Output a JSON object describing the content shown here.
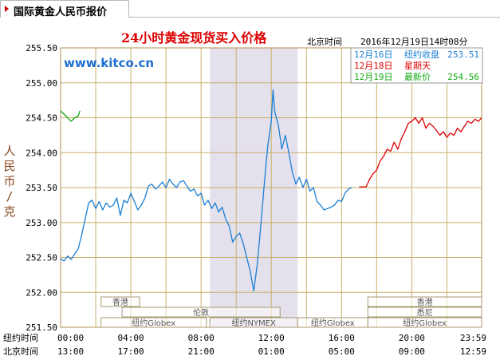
{
  "tab": {
    "title": "国际黄金人民币报价"
  },
  "chart_data": {
    "type": "line",
    "title": "24小时黄金现货买入价格",
    "timestamp_label": "北京时间",
    "timestamp": "2016年12月19日14时08分",
    "watermark": "www.kitco.cn",
    "ylabel": "人民币/克",
    "ylim": [
      251.5,
      255.5
    ],
    "yticks": [
      "251.50",
      "252.00",
      "252.50",
      "253.00",
      "253.50",
      "254.00",
      "254.50",
      "255.00",
      "255.50"
    ],
    "x_rows": [
      {
        "label": "纽约时间",
        "ticks": [
          "00:00",
          "04:00",
          "08:00",
          "12:00",
          "16:00",
          "20:00",
          "23:59"
        ]
      },
      {
        "label": "北京时间",
        "ticks": [
          "13:00",
          "17:00",
          "21:00",
          "01:00",
          "05:00",
          "09:00",
          "12:59"
        ]
      }
    ],
    "ny_hours": [
      0,
      4,
      8,
      12,
      16,
      20,
      23.98
    ],
    "highlight_band": [
      8.5,
      13.5
    ],
    "legend": [
      {
        "date": "12月16日",
        "label": "纽约收盘",
        "value": "253.51",
        "color": "#1a7fd6"
      },
      {
        "date": "12月18日",
        "label": "星期天",
        "value": "",
        "color": "#dd0000"
      },
      {
        "date": "12月19日",
        "label": "最新价",
        "value": "254.56",
        "color": "#11aa11"
      }
    ],
    "sessions": [
      {
        "name": "香港",
        "start": 2.3,
        "end": 4.5,
        "row": 0
      },
      {
        "name": "伦敦",
        "start": 3.5,
        "end": 12.5,
        "row": 1
      },
      {
        "name": "纽约Globex",
        "start": 2.3,
        "end": 8.3,
        "row": 2
      },
      {
        "name": "纽约NYMEX",
        "start": 8.5,
        "end": 13.5,
        "row": 2
      },
      {
        "name": "纽约Globex",
        "start": 13.5,
        "end": 17.5,
        "row": 2
      },
      {
        "name": "香港",
        "start": 17.5,
        "end": 23.98,
        "row": 0
      },
      {
        "name": "悉尼",
        "start": 17.5,
        "end": 23.98,
        "row": 1
      },
      {
        "name": "纽约Globex",
        "start": 17.5,
        "end": 23.98,
        "row": 2
      }
    ],
    "series": [
      {
        "color": "#1a7fd6",
        "points": [
          [
            0.0,
            252.48
          ],
          [
            0.2,
            252.45
          ],
          [
            0.4,
            252.52
          ],
          [
            0.6,
            252.47
          ],
          [
            0.8,
            252.55
          ],
          [
            1.0,
            252.62
          ],
          [
            1.2,
            252.82
          ],
          [
            1.4,
            253.05
          ],
          [
            1.6,
            253.28
          ],
          [
            1.8,
            253.32
          ],
          [
            2.0,
            253.2
          ],
          [
            2.2,
            253.3
          ],
          [
            2.4,
            253.18
          ],
          [
            2.6,
            253.28
          ],
          [
            2.8,
            253.22
          ],
          [
            3.0,
            253.25
          ],
          [
            3.2,
            253.35
          ],
          [
            3.4,
            253.1
          ],
          [
            3.6,
            253.32
          ],
          [
            3.8,
            253.28
          ],
          [
            4.0,
            253.42
          ],
          [
            4.2,
            253.3
          ],
          [
            4.4,
            253.18
          ],
          [
            4.6,
            253.25
          ],
          [
            4.8,
            253.35
          ],
          [
            5.0,
            253.52
          ],
          [
            5.2,
            253.55
          ],
          [
            5.4,
            253.48
          ],
          [
            5.6,
            253.52
          ],
          [
            5.8,
            253.58
          ],
          [
            6.0,
            253.5
          ],
          [
            6.2,
            253.62
          ],
          [
            6.4,
            253.55
          ],
          [
            6.6,
            253.5
          ],
          [
            6.8,
            253.58
          ],
          [
            7.0,
            253.6
          ],
          [
            7.2,
            253.52
          ],
          [
            7.4,
            253.45
          ],
          [
            7.6,
            253.48
          ],
          [
            7.8,
            253.38
          ],
          [
            8.0,
            253.42
          ],
          [
            8.2,
            253.25
          ],
          [
            8.4,
            253.32
          ],
          [
            8.6,
            253.2
          ],
          [
            8.8,
            253.28
          ],
          [
            9.0,
            253.15
          ],
          [
            9.2,
            253.22
          ],
          [
            9.4,
            253.05
          ],
          [
            9.6,
            252.95
          ],
          [
            9.8,
            252.72
          ],
          [
            10.0,
            252.8
          ],
          [
            10.2,
            252.85
          ],
          [
            10.4,
            252.7
          ],
          [
            10.6,
            252.5
          ],
          [
            10.8,
            252.3
          ],
          [
            11.0,
            252.02
          ],
          [
            11.2,
            252.4
          ],
          [
            11.4,
            252.95
          ],
          [
            11.6,
            253.55
          ],
          [
            11.8,
            254.1
          ],
          [
            12.0,
            254.45
          ],
          [
            12.1,
            254.9
          ],
          [
            12.2,
            254.58
          ],
          [
            12.4,
            254.4
          ],
          [
            12.6,
            254.05
          ],
          [
            12.8,
            254.25
          ],
          [
            13.0,
            254.0
          ],
          [
            13.2,
            253.72
          ],
          [
            13.4,
            253.55
          ],
          [
            13.6,
            253.65
          ],
          [
            13.8,
            253.5
          ],
          [
            14.0,
            253.62
          ],
          [
            14.2,
            253.45
          ],
          [
            14.4,
            253.5
          ],
          [
            14.6,
            253.3
          ],
          [
            14.8,
            253.25
          ],
          [
            15.0,
            253.18
          ],
          [
            15.2,
            253.2
          ],
          [
            15.4,
            253.22
          ],
          [
            15.6,
            253.25
          ],
          [
            15.8,
            253.32
          ],
          [
            16.0,
            253.3
          ],
          [
            16.2,
            253.42
          ],
          [
            16.4,
            253.48
          ],
          [
            16.6,
            253.5
          ]
        ]
      },
      {
        "color": "#dd0000",
        "points": [
          [
            17.0,
            253.51
          ],
          [
            17.4,
            253.51
          ],
          [
            17.6,
            253.62
          ],
          [
            17.8,
            253.7
          ],
          [
            18.0,
            253.75
          ],
          [
            18.2,
            253.88
          ],
          [
            18.4,
            253.95
          ],
          [
            18.6,
            254.05
          ],
          [
            18.8,
            254.02
          ],
          [
            19.0,
            254.15
          ],
          [
            19.2,
            254.05
          ],
          [
            19.4,
            254.2
          ],
          [
            19.6,
            254.3
          ],
          [
            19.8,
            254.42
          ],
          [
            20.0,
            254.45
          ],
          [
            20.2,
            254.5
          ],
          [
            20.4,
            254.42
          ],
          [
            20.6,
            254.5
          ],
          [
            20.8,
            254.35
          ],
          [
            21.0,
            254.42
          ],
          [
            21.2,
            254.38
          ],
          [
            21.4,
            254.32
          ],
          [
            21.6,
            254.25
          ],
          [
            21.8,
            254.3
          ],
          [
            22.0,
            254.22
          ],
          [
            22.2,
            254.28
          ],
          [
            22.4,
            254.25
          ],
          [
            22.6,
            254.35
          ],
          [
            22.8,
            254.3
          ],
          [
            23.0,
            254.38
          ],
          [
            23.2,
            254.45
          ],
          [
            23.4,
            254.42
          ],
          [
            23.6,
            254.48
          ],
          [
            23.8,
            254.45
          ],
          [
            23.98,
            254.5
          ]
        ]
      },
      {
        "color": "#11aa11",
        "points": [
          [
            0.0,
            254.6
          ],
          [
            0.2,
            254.55
          ],
          [
            0.4,
            254.5
          ],
          [
            0.6,
            254.45
          ],
          [
            0.8,
            254.5
          ],
          [
            1.0,
            254.52
          ],
          [
            1.1,
            254.6
          ]
        ]
      }
    ]
  }
}
